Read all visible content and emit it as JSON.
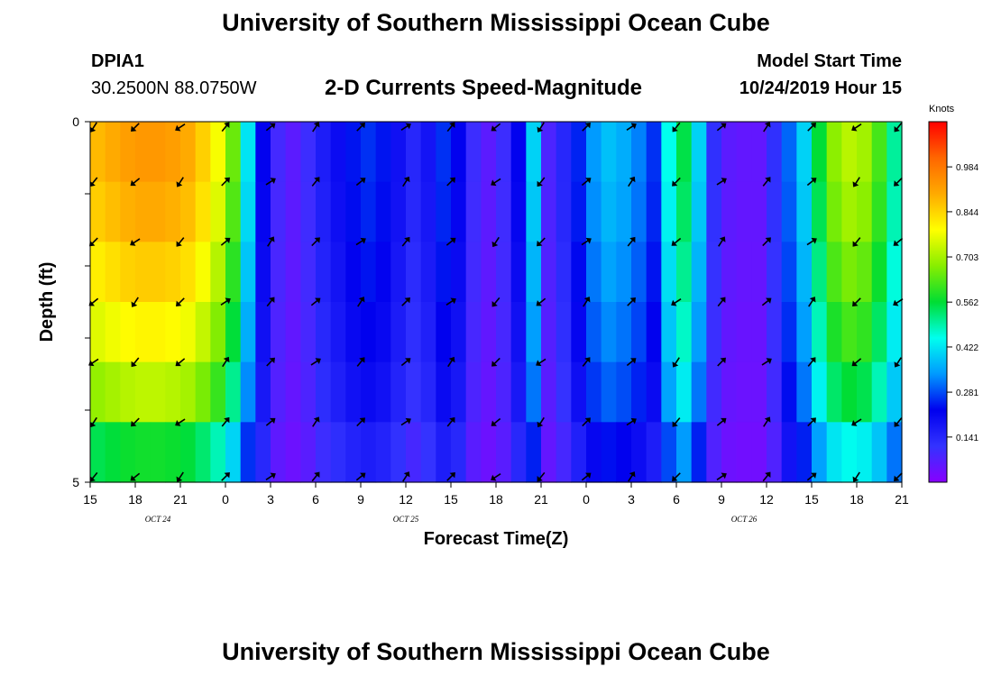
{
  "header": {
    "title": "University of Southern Mississippi Ocean Cube",
    "station_id": "DPIA1",
    "station_coords": "30.2500N 88.0750W",
    "chart_title": "2-D Currents Speed-Magnitude",
    "model_start_label": "Model Start Time",
    "model_start_value": "10/24/2019 Hour 15"
  },
  "footer": {
    "title": "University of Southern Mississippi Ocean Cube"
  },
  "chart_data": {
    "type": "heatmap",
    "title": "2-D Currents Speed-Magnitude",
    "xlabel": "Forecast Time(Z)",
    "ylabel": "Depth (ft)",
    "x_tick_labels": [
      "15",
      "18",
      "21",
      "0",
      "3",
      "6",
      "9",
      "12",
      "15",
      "18",
      "21",
      "0",
      "3",
      "6",
      "9",
      "12",
      "15",
      "18",
      "21"
    ],
    "date_labels": [
      {
        "label": "OCT 24",
        "tick_index": 1.5
      },
      {
        "label": "OCT 25",
        "tick_index": 7
      },
      {
        "label": "OCT 26",
        "tick_index": 14.5
      }
    ],
    "y_tick_labels": [
      "0",
      "",
      "",
      "",
      "",
      "5"
    ],
    "ylim": [
      0,
      5
    ],
    "forecast_hours": 54,
    "depth_layers": 5,
    "colorbar": {
      "unit": "Knots",
      "range": [
        0,
        1.125
      ],
      "tick_labels": [
        "0.984",
        "0.844",
        "0.703",
        "0.562",
        "0.422",
        "0.281",
        "0.141"
      ],
      "tick_values": [
        0.984,
        0.844,
        0.703,
        0.562,
        0.422,
        0.281,
        0.141
      ],
      "colors": [
        "#8800ff",
        "#3333ff",
        "#0000ee",
        "#0099ff",
        "#00ffee",
        "#00dd33",
        "#88ee00",
        "#ffff00",
        "#ffaa00",
        "#ff6600",
        "#ff0000"
      ]
    },
    "speed_profile_knots": [
      0.88,
      0.9,
      0.92,
      0.93,
      0.93,
      0.92,
      0.9,
      0.85,
      0.78,
      0.65,
      0.42,
      0.22,
      0.09,
      0.06,
      0.1,
      0.16,
      0.2,
      0.24,
      0.26,
      0.24,
      0.19,
      0.14,
      0.18,
      0.26,
      0.22,
      0.1,
      0.06,
      0.1,
      0.22,
      0.4,
      0.08,
      0.14,
      0.25,
      0.34,
      0.38,
      0.36,
      0.32,
      0.26,
      0.45,
      0.55,
      0.4,
      0.12,
      0.06,
      0.05,
      0.05,
      0.12,
      0.3,
      0.4,
      0.56,
      0.68,
      0.72,
      0.7,
      0.62,
      0.5
    ],
    "depth_factors": [
      1.0,
      0.97,
      0.92,
      0.86,
      0.78,
      0.62
    ],
    "arrow_directions_deg": [
      135,
      135,
      135,
      -45,
      -45,
      -45,
      -45,
      -45,
      -45,
      135,
      135,
      -45,
      -45,
      135,
      -45,
      -45,
      -45,
      135,
      135
    ]
  }
}
